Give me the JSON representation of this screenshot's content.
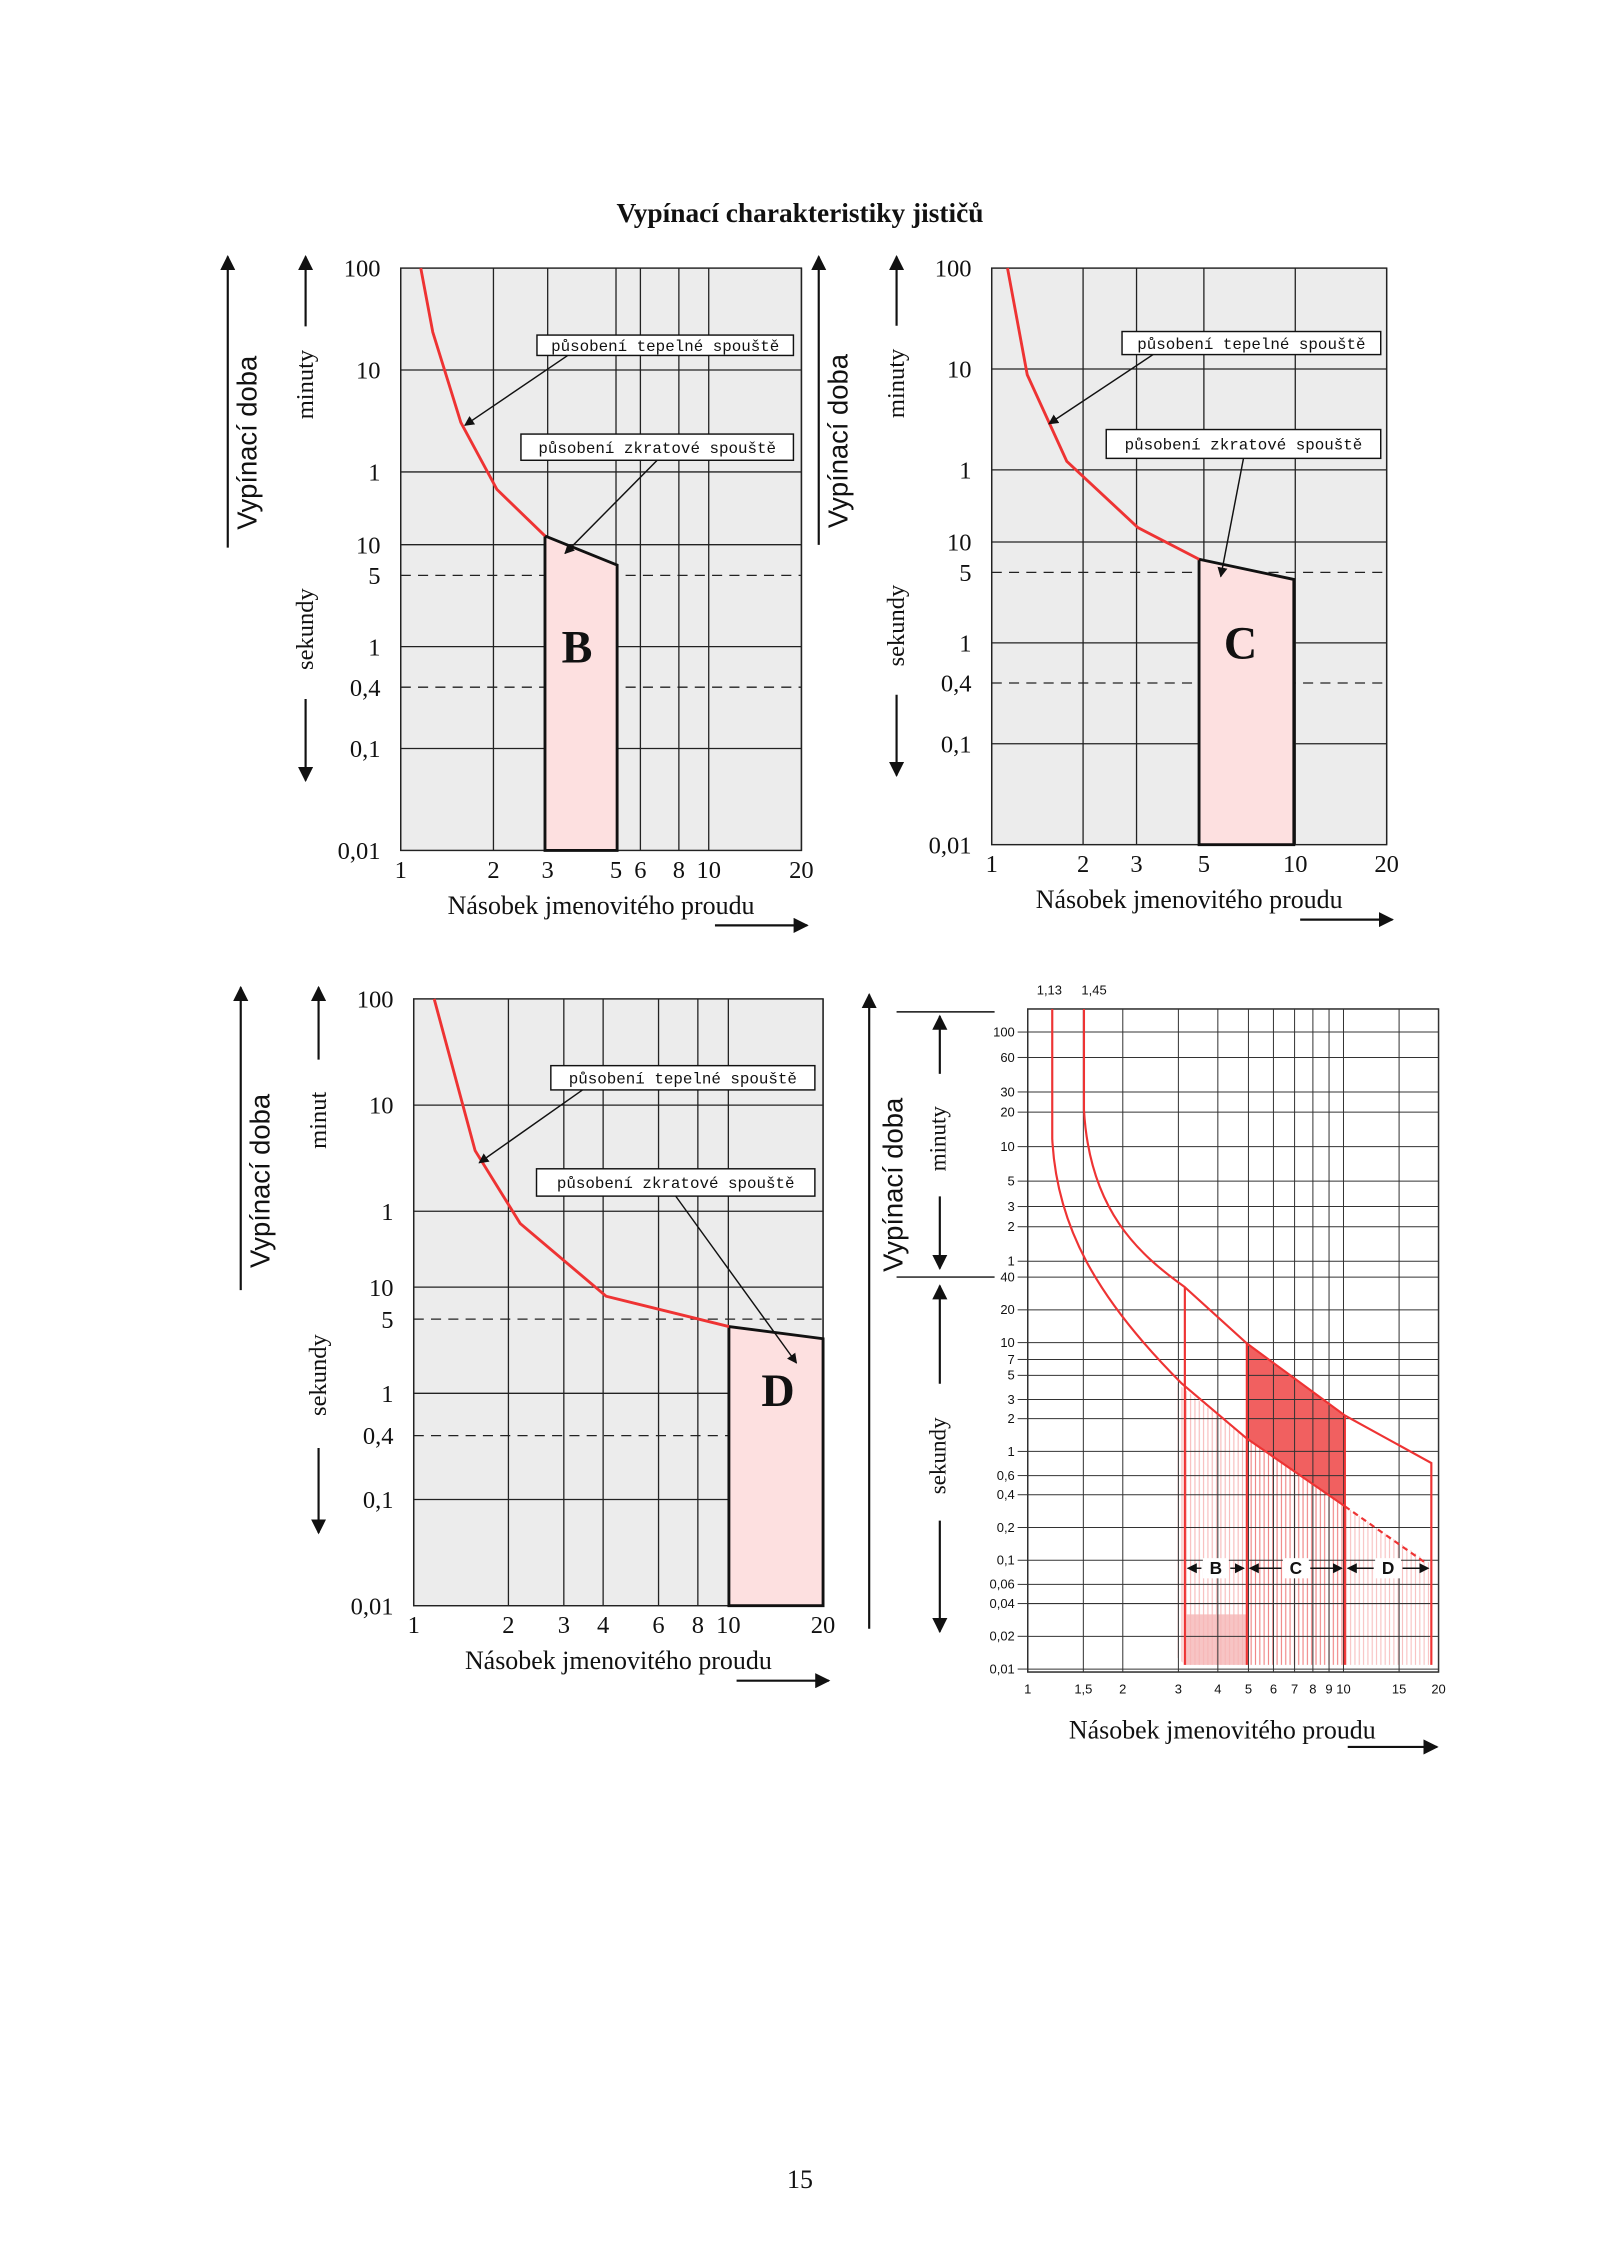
{
  "title": "Vypínací charakteristiky jističů",
  "panels": [
    {
      "letter": "B",
      "y_axis_label": "Vypínací doba",
      "y_minutes": "minuty",
      "y_seconds": "sekundy",
      "minute_ticks": [
        "100",
        "10",
        "1"
      ],
      "second_ticks": [
        "10",
        "5",
        "1",
        "0,4",
        "0,1",
        "0,01"
      ],
      "x_ticks": [
        "1",
        "2",
        "3",
        "5",
        "6",
        "8",
        "10",
        "20"
      ],
      "x_axis_label": "Násobek jmenovitého proudu",
      "annotation_thermal": "působení tepelné spouště",
      "annotation_short": "působení zkratové spouště"
    },
    {
      "letter": "C",
      "y_axis_label": "Vypínací doba",
      "y_minutes": "minuty",
      "y_seconds": "sekundy",
      "minute_ticks": [
        "100",
        "10",
        "1"
      ],
      "second_ticks": [
        "10",
        "5",
        "1",
        "0,4",
        "0,1",
        "0,01"
      ],
      "x_ticks": [
        "1",
        "2",
        "3",
        "5",
        "10",
        "20"
      ],
      "x_axis_label": "Násobek jmenovitého proudu",
      "annotation_thermal": "působení tepelné spouště",
      "annotation_short": "působení zkratové spouště"
    },
    {
      "letter": "D",
      "y_axis_label": "Vypínací doba",
      "y_minutes": "minut",
      "y_seconds": "sekundy",
      "minute_ticks": [
        "100",
        "10",
        "1"
      ],
      "second_ticks": [
        "10",
        "5",
        "1",
        "0,4",
        "0,1",
        "0,01"
      ],
      "x_ticks": [
        "1",
        "2",
        "3",
        "4",
        "6",
        "8",
        "10",
        "20"
      ],
      "x_axis_label": "Násobek jmenovitého proudu",
      "annotation_thermal": "působení tepelné spouště",
      "annotation_short": "působení zkratové spouště"
    }
  ],
  "combined": {
    "y_axis_label": "Vypínací doba",
    "y_minutes": "minuty",
    "y_seconds": "sekundy",
    "top_labels": [
      "1,13",
      "1,45"
    ],
    "minute_ticks": [
      "100",
      "60",
      "30",
      "20",
      "10",
      "5",
      "3",
      "2",
      "1"
    ],
    "second_ticks": [
      "40",
      "20",
      "10",
      "7",
      "5",
      "3",
      "2",
      "1",
      "0,6",
      "0,4",
      "0,2",
      "0,1",
      "0,06",
      "0,04",
      "0,02",
      "0,01"
    ],
    "x_ticks": [
      "1",
      "1,5",
      "2",
      "3",
      "4",
      "5",
      "6",
      "7",
      "8",
      "9",
      "10",
      "15",
      "20"
    ],
    "zones": [
      "B",
      "C",
      "D"
    ],
    "x_axis_label": "Násobek jmenovitého proudu"
  },
  "page_number": "15"
}
